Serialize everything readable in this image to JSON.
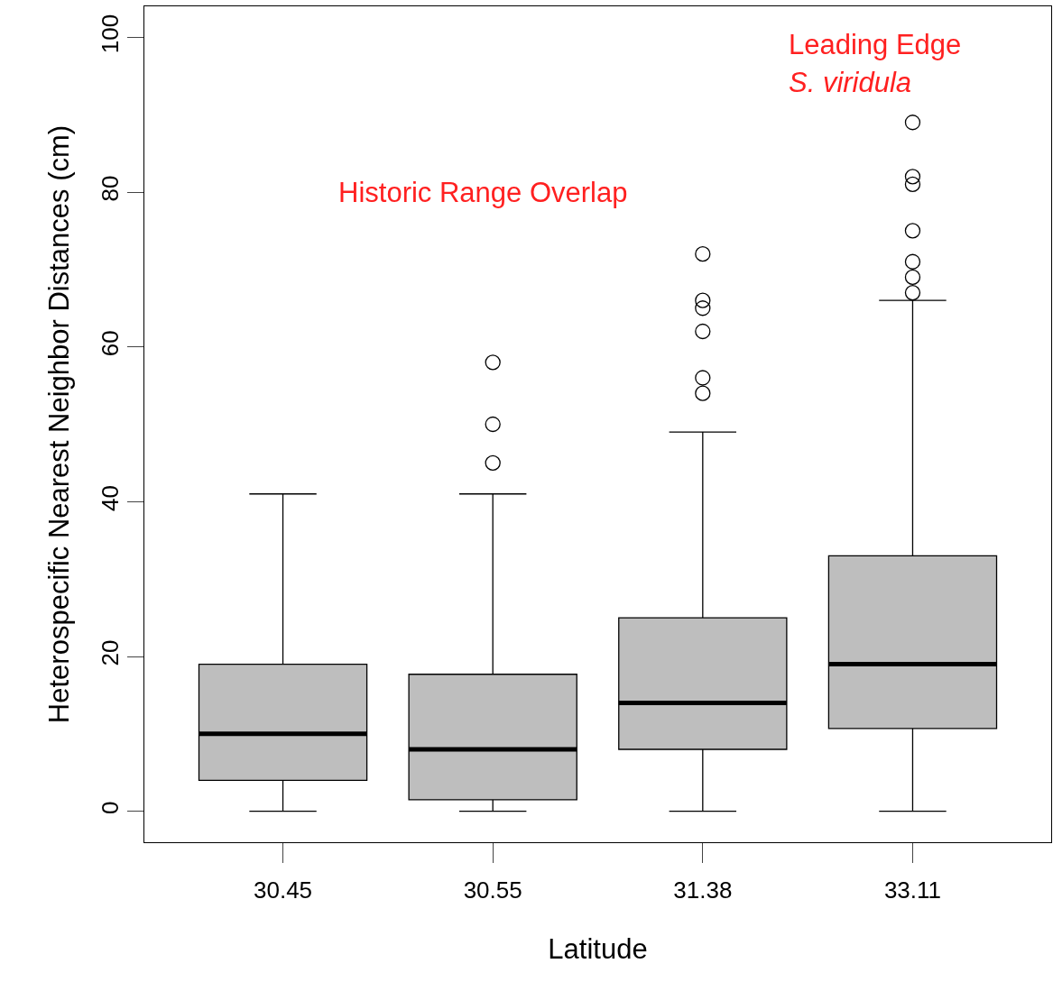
{
  "chart_data": {
    "type": "box",
    "xlabel": "Latitude",
    "ylabel": "Heterospecific Nearest Neighbor Distances (cm)",
    "categories": [
      "30.45",
      "30.55",
      "31.38",
      "33.11"
    ],
    "boxes": [
      {
        "low": 0,
        "q1": 4,
        "median": 10,
        "q3": 19,
        "high": 41
      },
      {
        "low": 0,
        "q1": 1.5,
        "median": 8,
        "q3": 17.7,
        "high": 41,
        "outliers": [
          45,
          50,
          58
        ]
      },
      {
        "low": 0,
        "q1": 8,
        "median": 14,
        "q3": 25,
        "high": 49,
        "outliers": [
          54,
          56,
          62,
          65,
          66,
          72
        ]
      },
      {
        "low": 0,
        "q1": 10.7,
        "median": 19,
        "q3": 33,
        "high": 66,
        "outliers": [
          67,
          69,
          71,
          75,
          81,
          82,
          89
        ]
      }
    ],
    "color": "#bebebe",
    "ylim": [
      -4,
      104
    ],
    "yticks": [
      0,
      20,
      40,
      60,
      80,
      100
    ],
    "marker": "circle",
    "annotations": [
      "Historic Range Overlap",
      "Leading Edge",
      "S. viridula"
    ]
  }
}
